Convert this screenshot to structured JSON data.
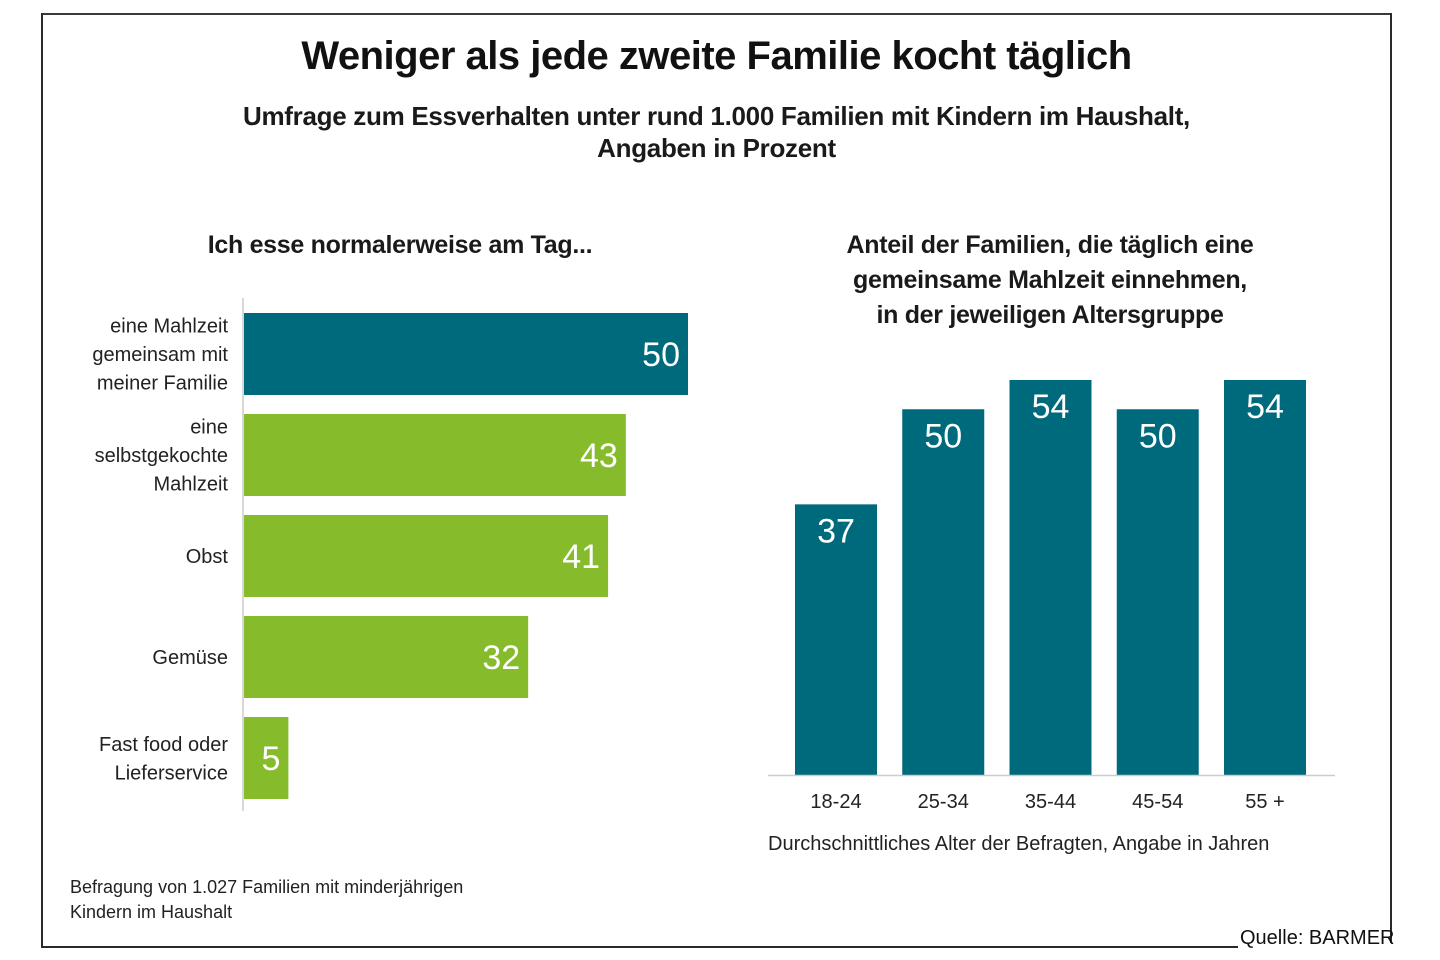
{
  "title": "Weniger als jede zweite Familie kocht täglich",
  "subtitle_line1": "Umfrage zum Essverhalten unter rund 1.000 Familien mit Kindern im Haushalt,",
  "subtitle_line2": "Angaben in Prozent",
  "footnote_line1": "Befragung von 1.027 Familien mit minderjährigen",
  "footnote_line2": "Kindern im Haushalt",
  "source": "Quelle: BARMER",
  "colors": {
    "teal": "#006a7d",
    "green": "#86bc2b",
    "label_text": "#ffffff",
    "axis": "#cccccc"
  },
  "chart_data": [
    {
      "type": "bar",
      "orientation": "horizontal",
      "title": "Ich esse normalerweise am Tag...",
      "categories": [
        [
          "eine Mahlzeit",
          "gemeinsam mit",
          "meiner Familie"
        ],
        [
          "eine",
          "selbstgekochte",
          "Mahlzeit"
        ],
        [
          "Obst"
        ],
        [
          "Gemüse"
        ],
        [
          "Fast food oder",
          "Lieferservice"
        ]
      ],
      "values": [
        50,
        43,
        41,
        32,
        5
      ],
      "bar_colors": [
        "teal",
        "green",
        "green",
        "green",
        "green"
      ],
      "unit": "Prozent",
      "xlim": [
        0,
        50
      ],
      "grid": false,
      "legend": "none"
    },
    {
      "type": "bar",
      "orientation": "vertical",
      "title": [
        "Anteil der Familien, die täglich eine",
        "gemeinsame Mahlzeit einnehmen,",
        "in der jeweiligen Altersgruppe"
      ],
      "categories": [
        "18-24",
        "25-34",
        "35-44",
        "45-54",
        "55 +"
      ],
      "values": [
        37,
        50,
        54,
        50,
        54
      ],
      "bar_colors": [
        "teal",
        "teal",
        "teal",
        "teal",
        "teal"
      ],
      "xlabel": "Durchschnittliches Alter der Befragten, Angabe in Jahren",
      "ylabel": "",
      "unit": "Prozent",
      "ylim": [
        0,
        54
      ],
      "grid": false,
      "legend": "none"
    }
  ]
}
